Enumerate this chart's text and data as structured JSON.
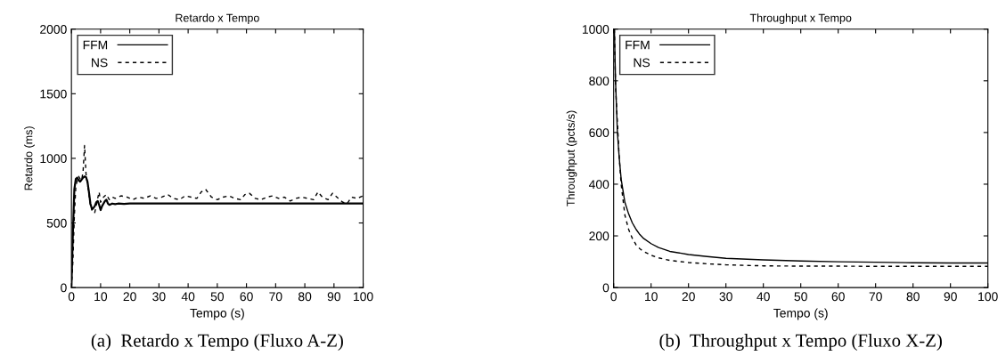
{
  "chart_data": [
    {
      "type": "line",
      "title": "Retardo x Tempo",
      "xlabel": "Tempo (s)",
      "ylabel": "Retardo (ms)",
      "annotations": [
        "(a)  Retardo x Tempo (Fluxo A-Z)"
      ],
      "xlim": [
        0,
        100
      ],
      "ylim": [
        0,
        2000
      ],
      "xticks": [
        0,
        10,
        20,
        30,
        40,
        50,
        60,
        70,
        80,
        90,
        100
      ],
      "yticks": [
        0,
        500,
        1000,
        1500,
        2000
      ],
      "grid": false,
      "legend": "top left",
      "series": [
        {
          "name": "FFM",
          "color": "#000000",
          "line_style": "solid",
          "x": [
            0,
            0.5,
            1,
            1.5,
            2,
            2.5,
            3,
            3.5,
            4,
            4.5,
            5,
            5.5,
            6,
            6.5,
            7,
            7.5,
            8,
            8.5,
            9,
            9.5,
            10,
            10.5,
            11,
            11.5,
            12,
            12.5,
            13,
            14,
            15,
            16,
            18,
            20,
            25,
            30,
            40,
            50,
            60,
            70,
            80,
            90,
            100
          ],
          "values": [
            0,
            420,
            760,
            840,
            850,
            830,
            820,
            835,
            850,
            860,
            855,
            820,
            740,
            650,
            610,
            615,
            630,
            660,
            670,
            640,
            600,
            630,
            650,
            670,
            680,
            650,
            640,
            650,
            645,
            650,
            648,
            650,
            650,
            650,
            650,
            650,
            650,
            650,
            650,
            650,
            650
          ]
        },
        {
          "name": "NS",
          "color": "#000000",
          "line_style": "dashed",
          "x": [
            0,
            0.5,
            1,
            1.5,
            2,
            2.5,
            3,
            3.5,
            4,
            4.5,
            5,
            5.5,
            6,
            6.5,
            7,
            7.5,
            8,
            9,
            9.5,
            10,
            11,
            12,
            13,
            14,
            15,
            17,
            19,
            21,
            23,
            25,
            27,
            29,
            31,
            33,
            35,
            37,
            39,
            41,
            43,
            44.5,
            46,
            48,
            50,
            52,
            54,
            56,
            58,
            59.5,
            61,
            63,
            65,
            67,
            69,
            71,
            73,
            75,
            77,
            79,
            81,
            83,
            84.5,
            86,
            88,
            89.5,
            91,
            93,
            94.5,
            96,
            98,
            99,
            100
          ],
          "values": [
            0,
            200,
            550,
            780,
            830,
            860,
            840,
            830,
            900,
            1100,
            880,
            800,
            720,
            640,
            600,
            610,
            580,
            690,
            740,
            660,
            700,
            720,
            680,
            700,
            690,
            710,
            700,
            680,
            700,
            690,
            710,
            690,
            700,
            720,
            690,
            680,
            710,
            700,
            690,
            740,
            760,
            700,
            680,
            700,
            710,
            690,
            680,
            720,
            730,
            690,
            680,
            700,
            710,
            690,
            700,
            670,
            690,
            700,
            690,
            680,
            740,
            700,
            680,
            730,
            700,
            660,
            650,
            700,
            690,
            700,
            710
          ]
        }
      ]
    },
    {
      "type": "line",
      "title": "Throughput x Tempo",
      "xlabel": "Tempo (s)",
      "ylabel": "Throughput (pcts/s)",
      "annotations": [
        "(b)  Throughput x Tempo (Fluxo X-Z)"
      ],
      "xlim": [
        0,
        100
      ],
      "ylim": [
        0,
        1000
      ],
      "xticks": [
        0,
        10,
        20,
        30,
        40,
        50,
        60,
        70,
        80,
        90,
        100
      ],
      "yticks": [
        0,
        200,
        400,
        600,
        800,
        1000
      ],
      "grid": false,
      "legend": "top left",
      "series": [
        {
          "name": "FFM",
          "color": "#000000",
          "line_style": "solid",
          "x": [
            0.2,
            0.5,
            1,
            1.5,
            2,
            3,
            4,
            5,
            6,
            7,
            8,
            10,
            12,
            15,
            20,
            25,
            30,
            40,
            50,
            60,
            70,
            80,
            90,
            100
          ],
          "values": [
            1000,
            800,
            600,
            500,
            420,
            330,
            285,
            250,
            225,
            205,
            190,
            170,
            155,
            140,
            128,
            120,
            113,
            107,
            103,
            100,
            98,
            96,
            95,
            95
          ]
        },
        {
          "name": "NS",
          "color": "#000000",
          "line_style": "dashed",
          "x": [
            0.2,
            0.5,
            1,
            1.5,
            2,
            3,
            4,
            5,
            6,
            7,
            8,
            10,
            12,
            15,
            20,
            25,
            30,
            40,
            50,
            60,
            70,
            80,
            90,
            100
          ],
          "values": [
            1000,
            780,
            640,
            500,
            400,
            280,
            225,
            190,
            165,
            150,
            140,
            125,
            115,
            105,
            97,
            92,
            88,
            84,
            83,
            83,
            82,
            82,
            82,
            82
          ]
        }
      ]
    }
  ]
}
